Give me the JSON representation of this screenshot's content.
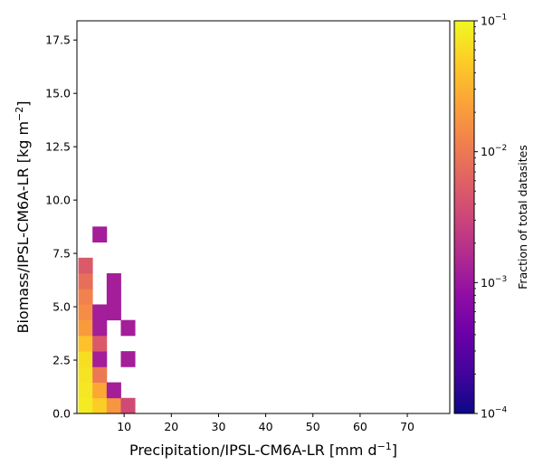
{
  "chart_data": {
    "type": "heatmap",
    "xlabel": {
      "main": "Precipitation/IPSL-CM6A-LR [mm d",
      "sup": "−1",
      "tail": "]"
    },
    "ylabel": {
      "main": "Biomass/IPSL-CM6A-LR [kg m",
      "sup": "−2",
      "tail": "]"
    },
    "xlim": [
      0,
      79
    ],
    "ylim": [
      0,
      18.4
    ],
    "x_ticks": [
      10,
      20,
      30,
      40,
      50,
      60,
      70
    ],
    "x_tick_labels": [
      "10",
      "20",
      "30",
      "40",
      "50",
      "60",
      "70"
    ],
    "y_ticks": [
      0,
      2.5,
      5,
      7.5,
      10,
      12.5,
      15,
      17.5
    ],
    "y_tick_labels": [
      "0.0",
      "2.5",
      "5.0",
      "7.5",
      "10.0",
      "12.5",
      "15.0",
      "17.5"
    ],
    "bin_width_x": 3.0,
    "bin_height_y": 0.73,
    "colorbar": {
      "label": "Fraction of total datasites",
      "scale": "log",
      "range": [
        0.0001,
        0.1
      ],
      "colormap": "plasma",
      "ticks": [
        0.0001,
        0.001,
        0.01,
        0.1
      ],
      "tick_labels": [
        {
          "base": "10",
          "exp": "−4"
        },
        {
          "base": "10",
          "exp": "−3"
        },
        {
          "base": "10",
          "exp": "−2"
        },
        {
          "base": "10",
          "exp": "−1"
        }
      ]
    },
    "cells": [
      {
        "x0": 0.3,
        "y0": 0.0,
        "value": 0.08
      },
      {
        "x0": 0.3,
        "y0": 0.73,
        "value": 0.075
      },
      {
        "x0": 0.3,
        "y0": 1.46,
        "value": 0.07
      },
      {
        "x0": 0.3,
        "y0": 2.19,
        "value": 0.065
      },
      {
        "x0": 0.3,
        "y0": 2.92,
        "value": 0.04
      },
      {
        "x0": 0.3,
        "y0": 3.65,
        "value": 0.02
      },
      {
        "x0": 0.3,
        "y0": 4.38,
        "value": 0.015
      },
      {
        "x0": 0.3,
        "y0": 5.11,
        "value": 0.012
      },
      {
        "x0": 0.3,
        "y0": 5.84,
        "value": 0.008
      },
      {
        "x0": 0.3,
        "y0": 6.57,
        "value": 0.005
      },
      {
        "x0": 3.3,
        "y0": 0.0,
        "value": 0.05
      },
      {
        "x0": 3.3,
        "y0": 0.73,
        "value": 0.025
      },
      {
        "x0": 3.3,
        "y0": 1.46,
        "value": 0.01
      },
      {
        "x0": 3.3,
        "y0": 2.19,
        "value": 0.0012
      },
      {
        "x0": 3.3,
        "y0": 2.92,
        "value": 0.005
      },
      {
        "x0": 3.3,
        "y0": 3.65,
        "value": 0.0012
      },
      {
        "x0": 3.3,
        "y0": 4.38,
        "value": 0.0012
      },
      {
        "x0": 3.3,
        "y0": 8.03,
        "value": 0.0012
      },
      {
        "x0": 6.3,
        "y0": 0.0,
        "value": 0.018
      },
      {
        "x0": 6.3,
        "y0": 0.73,
        "value": 0.0012
      },
      {
        "x0": 6.3,
        "y0": 4.38,
        "value": 0.0012
      },
      {
        "x0": 6.3,
        "y0": 5.11,
        "value": 0.0012
      },
      {
        "x0": 6.3,
        "y0": 5.84,
        "value": 0.0012
      },
      {
        "x0": 9.3,
        "y0": 0.0,
        "value": 0.0035
      },
      {
        "x0": 9.3,
        "y0": 2.19,
        "value": 0.0012
      },
      {
        "x0": 9.3,
        "y0": 3.65,
        "value": 0.0012
      }
    ]
  }
}
